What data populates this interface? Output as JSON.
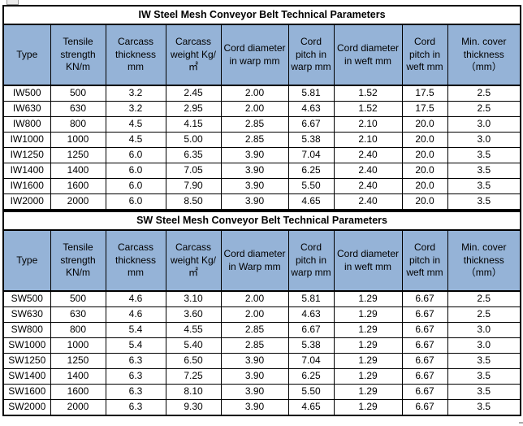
{
  "colors": {
    "header_bg": "#95B3D7",
    "border": "#000000",
    "title_bg": "#FFFFFF",
    "text": "#000000"
  },
  "tables": [
    {
      "title": "IW Steel Mesh Conveyor Belt Technical Parameters",
      "columns": [
        "Type",
        "Tensile strength KN/m",
        "Carcass thickness mm",
        "Carcass weight Kg/㎡",
        "Cord diameter in warp mm",
        "Cord pitch in warp mm",
        "Cord diameter in weft mm",
        "Cord pitch in weft mm",
        "Min. cover thickness （mm）"
      ],
      "rows": [
        [
          "IW500",
          "500",
          "3.2",
          "2.45",
          "2.00",
          "5.81",
          "1.52",
          "17.5",
          "2.5"
        ],
        [
          "IW630",
          "630",
          "3.2",
          "2.95",
          "2.00",
          "4.63",
          "1.52",
          "17.5",
          "2.5"
        ],
        [
          "IW800",
          "800",
          "4.5",
          "4.15",
          "2.85",
          "6.67",
          "2.10",
          "20.0",
          "3.0"
        ],
        [
          "IW1000",
          "1000",
          "4.5",
          "5.00",
          "2.85",
          "5.38",
          "2.10",
          "20.0",
          "3.0"
        ],
        [
          "IW1250",
          "1250",
          "6.0",
          "6.35",
          "3.90",
          "7.04",
          "2.40",
          "20.0",
          "3.5"
        ],
        [
          "IW1400",
          "1400",
          "6.0",
          "7.05",
          "3.90",
          "6.25",
          "2.40",
          "20.0",
          "3.5"
        ],
        [
          "IW1600",
          "1600",
          "6.0",
          "7.90",
          "3.90",
          "5.50",
          "2.40",
          "20.0",
          "3.5"
        ],
        [
          "IW2000",
          "2000",
          "6.0",
          "8.50",
          "3.90",
          "4.65",
          "2.40",
          "20.0",
          "3.5"
        ]
      ]
    },
    {
      "title": "SW Steel Mesh Conveyor Belt Technical Parameters",
      "columns": [
        "Type",
        "Tensile strength KN/m",
        "Carcass thickness mm",
        "Carcass weight Kg/㎡",
        "Cord diameter in Warp mm",
        "Cord pitch in warp mm",
        "Cord diameter in weft mm",
        "Cord pitch in weft mm",
        "Min. cover thickness （mm）"
      ],
      "rows": [
        [
          "SW500",
          "500",
          "4.6",
          "3.10",
          "2.00",
          "5.81",
          "1.29",
          "6.67",
          "2.5"
        ],
        [
          "SW630",
          "630",
          "4.6",
          "3.60",
          "2.00",
          "4.63",
          "1.29",
          "6.67",
          "2.5"
        ],
        [
          "SW800",
          "800",
          "5.4",
          "4.55",
          "2.85",
          "6.67",
          "1.29",
          "6.67",
          "3.0"
        ],
        [
          "SW1000",
          "1000",
          "5.4",
          "5.40",
          "2.85",
          "5.38",
          "1.29",
          "6.67",
          "3.0"
        ],
        [
          "SW1250",
          "1250",
          "6.3",
          "6.50",
          "3.90",
          "7.04",
          "1.29",
          "6.67",
          "3.5"
        ],
        [
          "SW1400",
          "1400",
          "6.3",
          "7.25",
          "3.90",
          "6.25",
          "1.29",
          "6.67",
          "3.5"
        ],
        [
          "SW1600",
          "1600",
          "6.3",
          "8.10",
          "3.90",
          "5.50",
          "1.29",
          "6.67",
          "3.5"
        ],
        [
          "SW2000",
          "2000",
          "6.3",
          "9.30",
          "3.90",
          "4.65",
          "1.29",
          "6.67",
          "3.5"
        ]
      ]
    }
  ]
}
